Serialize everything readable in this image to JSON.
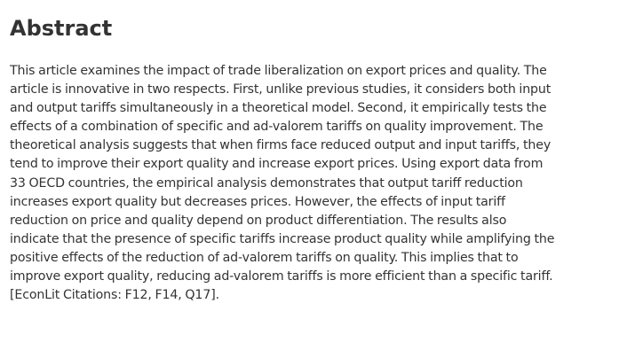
{
  "abstract": {
    "heading": "Abstract",
    "body": "This article examines the impact of trade liberalization on export prices and quality. The\narticle is innovative in two respects. First, unlike previous studies, it considers both input\nand output tariffs simultaneously in a theoretical model. Second, it empirically tests the\neffects of a combination of specific and ad-valorem tariffs on quality improvement. The\ntheoretical analysis suggests that when firms face reduced output and input tariffs, they\ntend to improve their export quality and increase export prices. Using export data from\n33 OECD countries, the empirical analysis demonstrates that output tariff reduction\nincreases export quality but decreases prices. However, the effects of input tariff\nreduction on price and quality depend on product differentiation. The results also\nindicate that the presence of specific tariffs increase product quality while amplifying the\npositive effects of the reduction of ad-valorem tariffs on quality. This implies that to\nimprove export quality, reducing ad-valorem tariffs is more efficient than a specific tariff.\n[EconLit Citations: F12, F14, Q17]."
  }
}
